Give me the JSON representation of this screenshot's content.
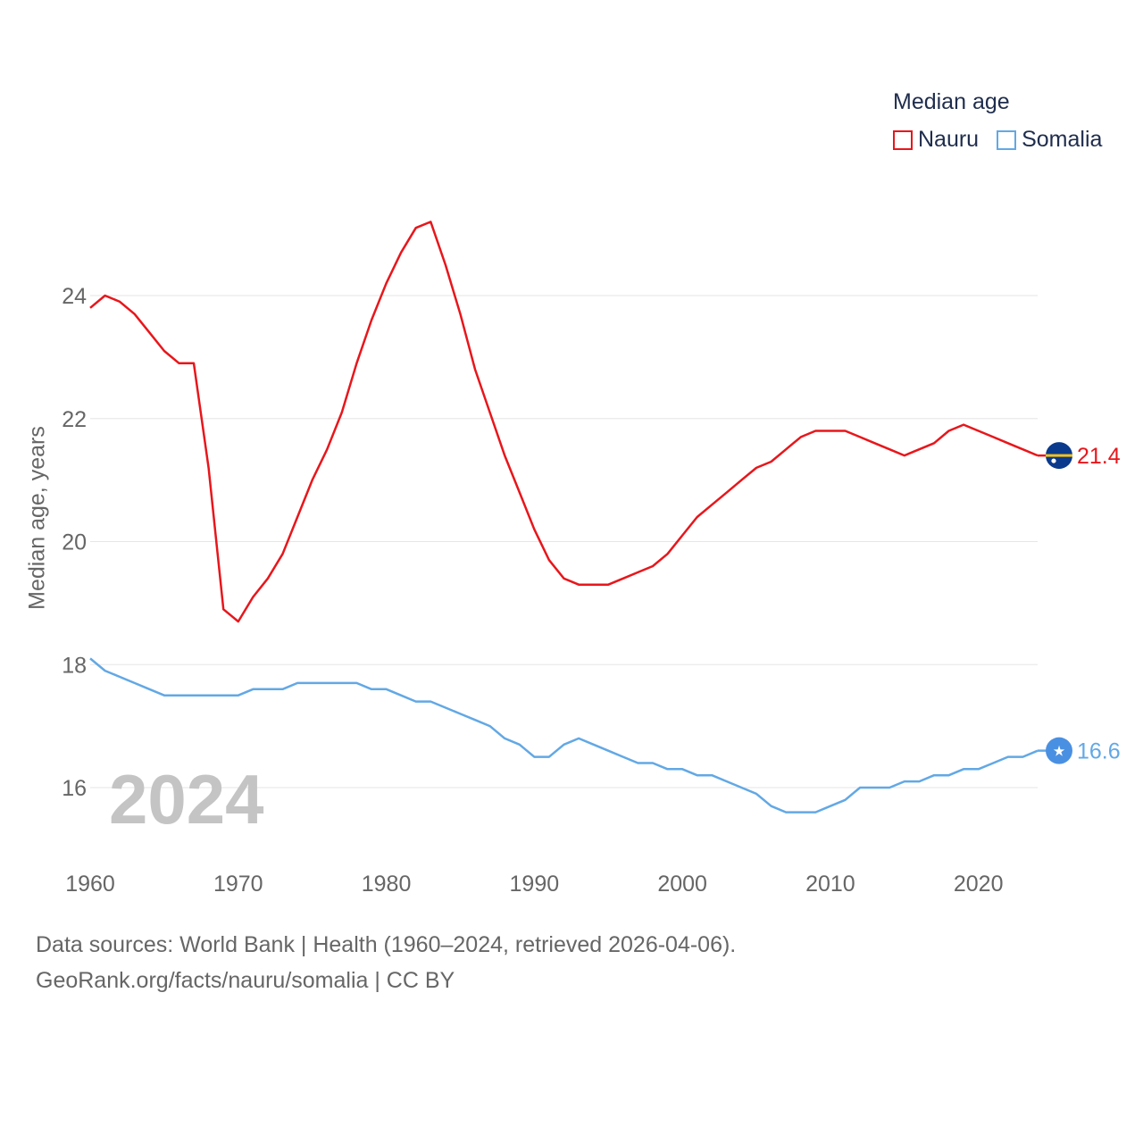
{
  "legend": {
    "title": "Median age",
    "items": [
      {
        "label": "Nauru",
        "color": "#e8161b"
      },
      {
        "label": "Somalia",
        "color": "#62a8e5"
      }
    ]
  },
  "year_label": "2024",
  "footer": {
    "line1": "Data sources: World Bank | Health (1960–2024, retrieved 2026-04-06).",
    "line2": "GeoRank.org/facts/nauru/somalia | CC BY"
  },
  "chart_data": {
    "type": "line",
    "title": "Median age",
    "xlabel": "",
    "ylabel": "Median age, years",
    "xlim": [
      1960,
      2024
    ],
    "ylim": [
      15,
      25.5
    ],
    "xticks": [
      1960,
      1970,
      1980,
      1990,
      2000,
      2010,
      2020
    ],
    "yticks": [
      16,
      18,
      20,
      22,
      24
    ],
    "grid": true,
    "legend_position": "top-right",
    "x": [
      1960,
      1961,
      1962,
      1963,
      1964,
      1965,
      1966,
      1967,
      1968,
      1969,
      1970,
      1971,
      1972,
      1973,
      1974,
      1975,
      1976,
      1977,
      1978,
      1979,
      1980,
      1981,
      1982,
      1983,
      1984,
      1985,
      1986,
      1987,
      1988,
      1989,
      1990,
      1991,
      1992,
      1993,
      1994,
      1995,
      1996,
      1997,
      1998,
      1999,
      2000,
      2001,
      2002,
      2003,
      2004,
      2005,
      2006,
      2007,
      2008,
      2009,
      2010,
      2011,
      2012,
      2013,
      2014,
      2015,
      2016,
      2017,
      2018,
      2019,
      2020,
      2021,
      2022,
      2023,
      2024
    ],
    "series": [
      {
        "name": "Nauru",
        "color": "#e8161b",
        "end_label": "21.4",
        "values": [
          23.8,
          24.0,
          23.9,
          23.7,
          23.4,
          23.1,
          22.9,
          22.9,
          21.2,
          18.9,
          18.7,
          19.1,
          19.4,
          19.8,
          20.4,
          21.0,
          21.5,
          22.1,
          22.9,
          23.6,
          24.2,
          24.7,
          25.1,
          25.2,
          24.5,
          23.7,
          22.8,
          22.1,
          21.4,
          20.8,
          20.2,
          19.7,
          19.4,
          19.3,
          19.3,
          19.3,
          19.4,
          19.5,
          19.6,
          19.8,
          20.1,
          20.4,
          20.6,
          20.8,
          21.0,
          21.2,
          21.3,
          21.5,
          21.7,
          21.8,
          21.8,
          21.8,
          21.7,
          21.6,
          21.5,
          21.4,
          21.5,
          21.6,
          21.8,
          21.9,
          21.8,
          21.7,
          21.6,
          21.5,
          21.4
        ]
      },
      {
        "name": "Somalia",
        "color": "#62a8e5",
        "end_label": "16.6",
        "values": [
          18.1,
          17.9,
          17.8,
          17.7,
          17.6,
          17.5,
          17.5,
          17.5,
          17.5,
          17.5,
          17.5,
          17.6,
          17.6,
          17.6,
          17.7,
          17.7,
          17.7,
          17.7,
          17.7,
          17.6,
          17.6,
          17.5,
          17.4,
          17.4,
          17.3,
          17.2,
          17.1,
          17.0,
          16.8,
          16.7,
          16.5,
          16.5,
          16.7,
          16.8,
          16.7,
          16.6,
          16.5,
          16.4,
          16.4,
          16.3,
          16.3,
          16.2,
          16.2,
          16.1,
          16.0,
          15.9,
          15.7,
          15.6,
          15.6,
          15.6,
          15.7,
          15.8,
          16.0,
          16.0,
          16.0,
          16.1,
          16.1,
          16.2,
          16.2,
          16.3,
          16.3,
          16.4,
          16.5,
          16.5,
          16.6
        ]
      }
    ]
  }
}
